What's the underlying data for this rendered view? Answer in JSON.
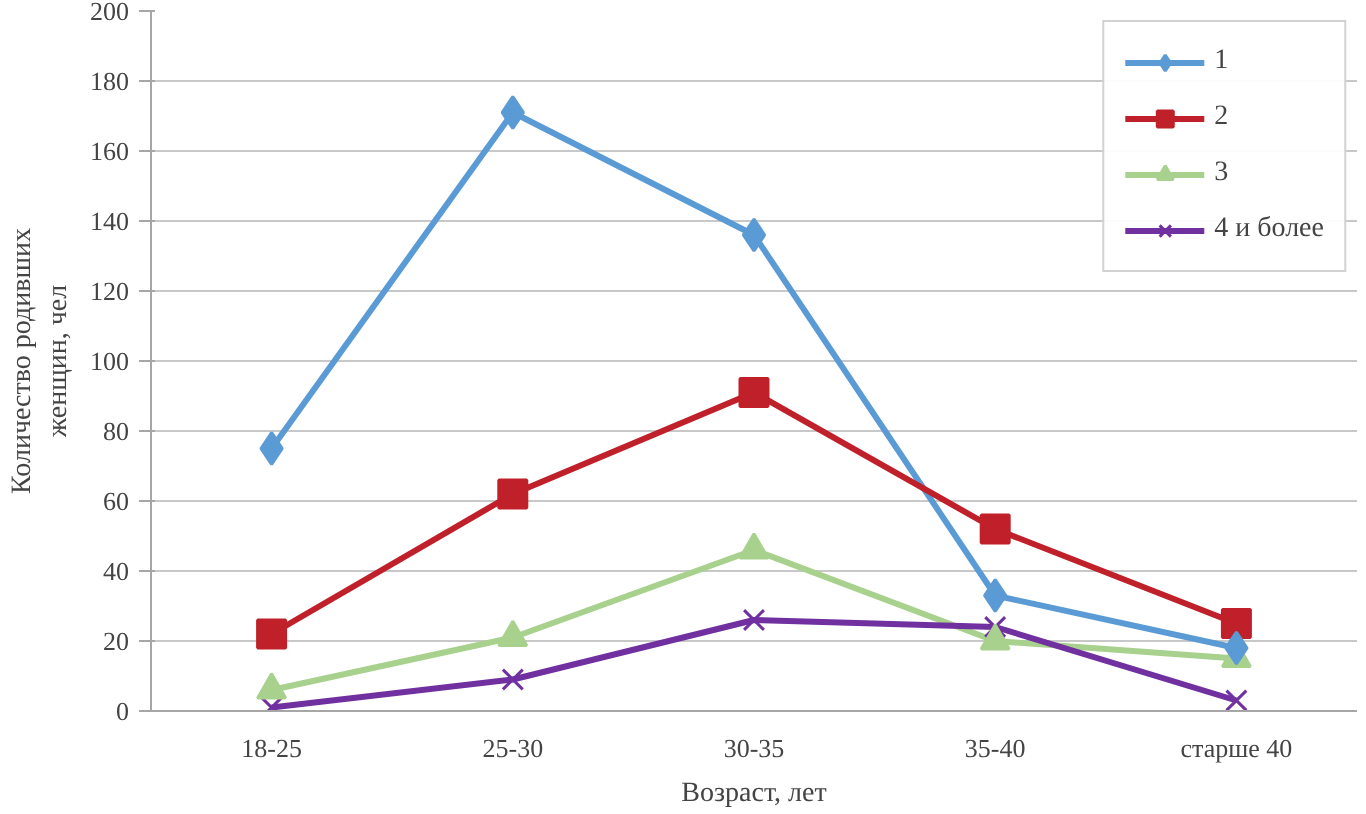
{
  "chart_data": {
    "type": "line",
    "xlabel": "Возраст, лет",
    "ylabel": "Количество родивших\nженщин, чел",
    "categories": [
      "18-25",
      "25-30",
      "30-35",
      "35-40",
      "старше 40"
    ],
    "series": [
      {
        "name": "1",
        "color": "#5b9bd5",
        "marker": "diamond",
        "values": [
          75,
          171,
          136,
          33,
          18
        ]
      },
      {
        "name": "2",
        "color": "#c0202a",
        "marker": "square",
        "values": [
          22,
          62,
          91,
          52,
          25
        ]
      },
      {
        "name": "3",
        "color": "#a9d18e",
        "marker": "triangle",
        "values": [
          6,
          21,
          46,
          20,
          15
        ]
      },
      {
        "name": "4 и более",
        "color": "#7030a0",
        "marker": "x",
        "values": [
          1,
          9,
          26,
          24,
          3
        ]
      }
    ],
    "ylim": [
      0,
      200
    ],
    "yticks": [
      0,
      20,
      40,
      60,
      80,
      100,
      120,
      140,
      160,
      180,
      200
    ],
    "grid": "y",
    "legend": "top right",
    "line_style": "solid"
  }
}
